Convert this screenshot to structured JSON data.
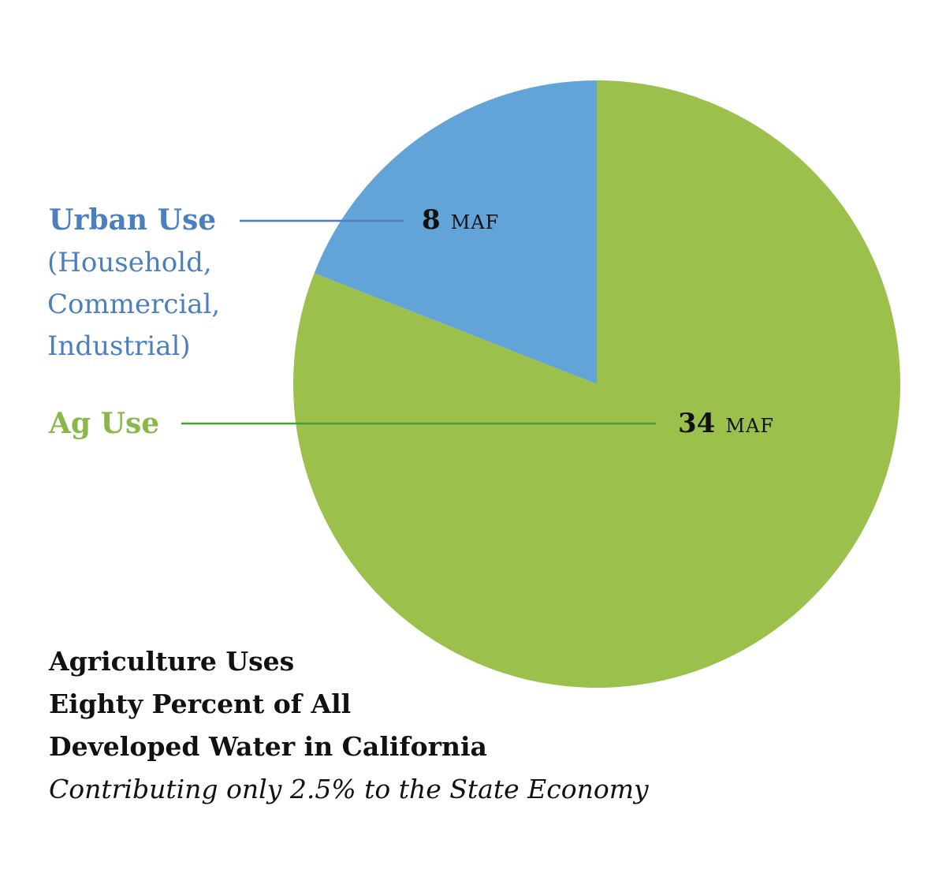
{
  "chart_data": {
    "type": "pie",
    "title": "Agriculture Uses Eighty Percent of All Developed Water in California",
    "title_lines": [
      "Agriculture Uses",
      "Eighty Percent of All",
      "Developed Water in California"
    ],
    "subtitle": "Contributing only 2.5% to the State Economy",
    "unit": "MAF",
    "slices": [
      {
        "name": "Urban Use",
        "detail_lines": [
          "(Household,",
          "Commercial,",
          "Industrial)"
        ],
        "value": 8,
        "value_label": "8",
        "color": "#62a3d8",
        "label_color": "#4b7fc0"
      },
      {
        "name": "Ag Use",
        "detail_lines": [],
        "value": 34,
        "value_label": "34",
        "color": "#9bc04c",
        "label_color": "#8ab848"
      }
    ],
    "leader_colors": {
      "urban": "#4b7fc0",
      "ag": "#4f9a3b"
    },
    "start_angle_deg": 0,
    "direction": "counterclockwise"
  }
}
